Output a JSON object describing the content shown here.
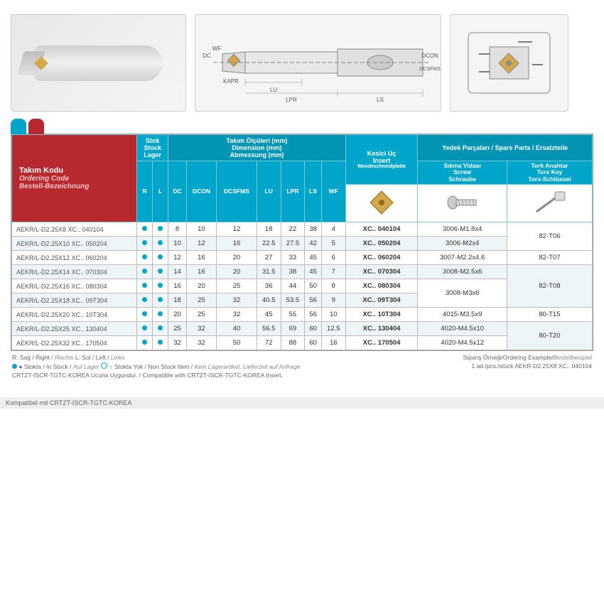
{
  "header": {
    "code_tr": "Takım Kodu",
    "code_en": "Ordering Code",
    "code_de": "Bestell-Bezeichnung",
    "stock_tr": "Stok",
    "stock_en": "Stock",
    "stock_de": "Lager",
    "dims_tr": "Takım Ölçüleri (mm)",
    "dims_en": "Dimension (mm)",
    "dims_de": "Abmessung (mm)",
    "insert_tr": "Kesici Uç",
    "insert_en": "Insert",
    "insert_de": "Wendeschneidplatte",
    "spare_tr": "Yedek Parçaları /",
    "spare_en": "Spare Parts",
    "spare_de": "/ Ersatzteile",
    "screw_tr": "Sıkma Vidası",
    "screw_en": "Screw",
    "screw_de": "Schraube",
    "key_tr": "Tork Anahtar",
    "key_en": "Torx Key",
    "key_de": "Torx-Schlüssel"
  },
  "cols": {
    "r": "R",
    "l": "L",
    "dc": "DC",
    "dcon": "DCON",
    "dcsfms": "DCSFMS",
    "lu": "LU",
    "lpr": "LPR",
    "ls": "LS",
    "wf": "WF"
  },
  "rows": [
    {
      "code": "AEKR/L-D2.25X8  XC.. 040104",
      "r": true,
      "l": true,
      "dc": "8",
      "dcon": "10",
      "dcsfms": "12",
      "lu": "18",
      "lpr": "22",
      "ls": "38",
      "wf": "4",
      "insert": "XC.. 040104",
      "screw": "3006-M1.8x4",
      "key": "82-T06",
      "kspan": 2
    },
    {
      "code": "AEKR/L-D2.25X10 XC.. 050204",
      "r": true,
      "l": true,
      "dc": "10",
      "dcon": "12",
      "dcsfms": "16",
      "lu": "22.5",
      "lpr": "27.5",
      "ls": "42",
      "wf": "5",
      "insert": "XC.. 050204",
      "screw": "3006-M2x4"
    },
    {
      "code": "AEKR/L-D2.25X12 XC.. 060204",
      "r": true,
      "l": true,
      "dc": "12",
      "dcon": "16",
      "dcsfms": "20",
      "lu": "27",
      "lpr": "33",
      "ls": "45",
      "wf": "6",
      "insert": "XC.. 060204",
      "screw": "3007-M2.2x4.6",
      "key": "82-T07",
      "kspan": 1
    },
    {
      "code": "AEKR/L-D2.25X14 XC.. 070304",
      "r": true,
      "l": true,
      "dc": "14",
      "dcon": "16",
      "dcsfms": "20",
      "lu": "31.5",
      "lpr": "38",
      "ls": "45",
      "wf": "7",
      "insert": "XC.. 070304",
      "screw": "3008-M2.5x6",
      "key": "82-T08",
      "kspan": 3
    },
    {
      "code": "AEKR/L-D2.25X16 XC.. 080304",
      "r": true,
      "l": true,
      "dc": "16",
      "dcon": "20",
      "dcsfms": "25",
      "lu": "36",
      "lpr": "44",
      "ls": "50",
      "wf": "8",
      "insert": "XC.. 080304",
      "screw": "3008-M3x6",
      "sspan": 2
    },
    {
      "code": "AEKR/L-D2.25X18 XC.. 09T304",
      "r": true,
      "l": true,
      "dc": "18",
      "dcon": "25",
      "dcsfms": "32",
      "lu": "40.5",
      "lpr": "53.5",
      "ls": "56",
      "wf": "9",
      "insert": "XC.. 09T304"
    },
    {
      "code": "AEKR/L-D2.25X20 XC.. 10T304",
      "r": true,
      "l": true,
      "dc": "20",
      "dcon": "25",
      "dcsfms": "32",
      "lu": "45",
      "lpr": "55",
      "ls": "56",
      "wf": "10",
      "insert": "XC.. 10T304",
      "screw": "4015-M3.5x9",
      "key": "80-T15",
      "kspan": 1
    },
    {
      "code": "AEKR/L-D2.25X25 XC.. 130404",
      "r": true,
      "l": true,
      "dc": "25",
      "dcon": "32",
      "dcsfms": "40",
      "lu": "56.5",
      "lpr": "69",
      "ls": "60",
      "wf": "12.5",
      "insert": "XC.. 130404",
      "screw": "4020-M4.5x10",
      "key": "80-T20",
      "kspan": 2
    },
    {
      "code": "AEKR/L-D2.25X32 XC.. 170504",
      "r": true,
      "l": true,
      "dc": "32",
      "dcon": "32",
      "dcsfms": "50",
      "lu": "72",
      "lpr": "88",
      "ls": "60",
      "wf": "16",
      "insert": "XC.. 170504",
      "screw": "4020-M4.5x12"
    }
  ],
  "footer": {
    "legend": "R: Sağ / Right / ",
    "legend_it1": "Rechts",
    "legend2": "   L: Sol / Left / ",
    "legend_it2": "Links",
    "stock1": "● Stokta / In Stock / ",
    "stock1_it": "Auf Lager",
    "stock2": "   ○ Stokta Yok / Non Stock Item / ",
    "stock2_it": "Kein Lagerartikel, Lieferzeit auf Anfrage",
    "compat": "CRTZT-ISCR-TGTC-KOREA Ucuna Uygundur. / Compatible with CRTZT-ISCR-TGTC-KOREA Insert.",
    "order_label": "Sipariş Örneği/Ordering Example/",
    "order_label_it": "Bestellbeispiel",
    "order_qty": "1 ad./pcs./stück  AEKR-D2.25X8 XC.. 040104",
    "bottom": "Kompatibel mit CRTZT-ISCR-TGTC-KOREA"
  },
  "diag_labels": {
    "dc": "DC",
    "wf": "WF",
    "kapr": "KAPR",
    "lu": "LU",
    "lpr": "LPR",
    "ls": "LS",
    "dcon": "DCON",
    "dcsfms": "DCSFMS"
  }
}
